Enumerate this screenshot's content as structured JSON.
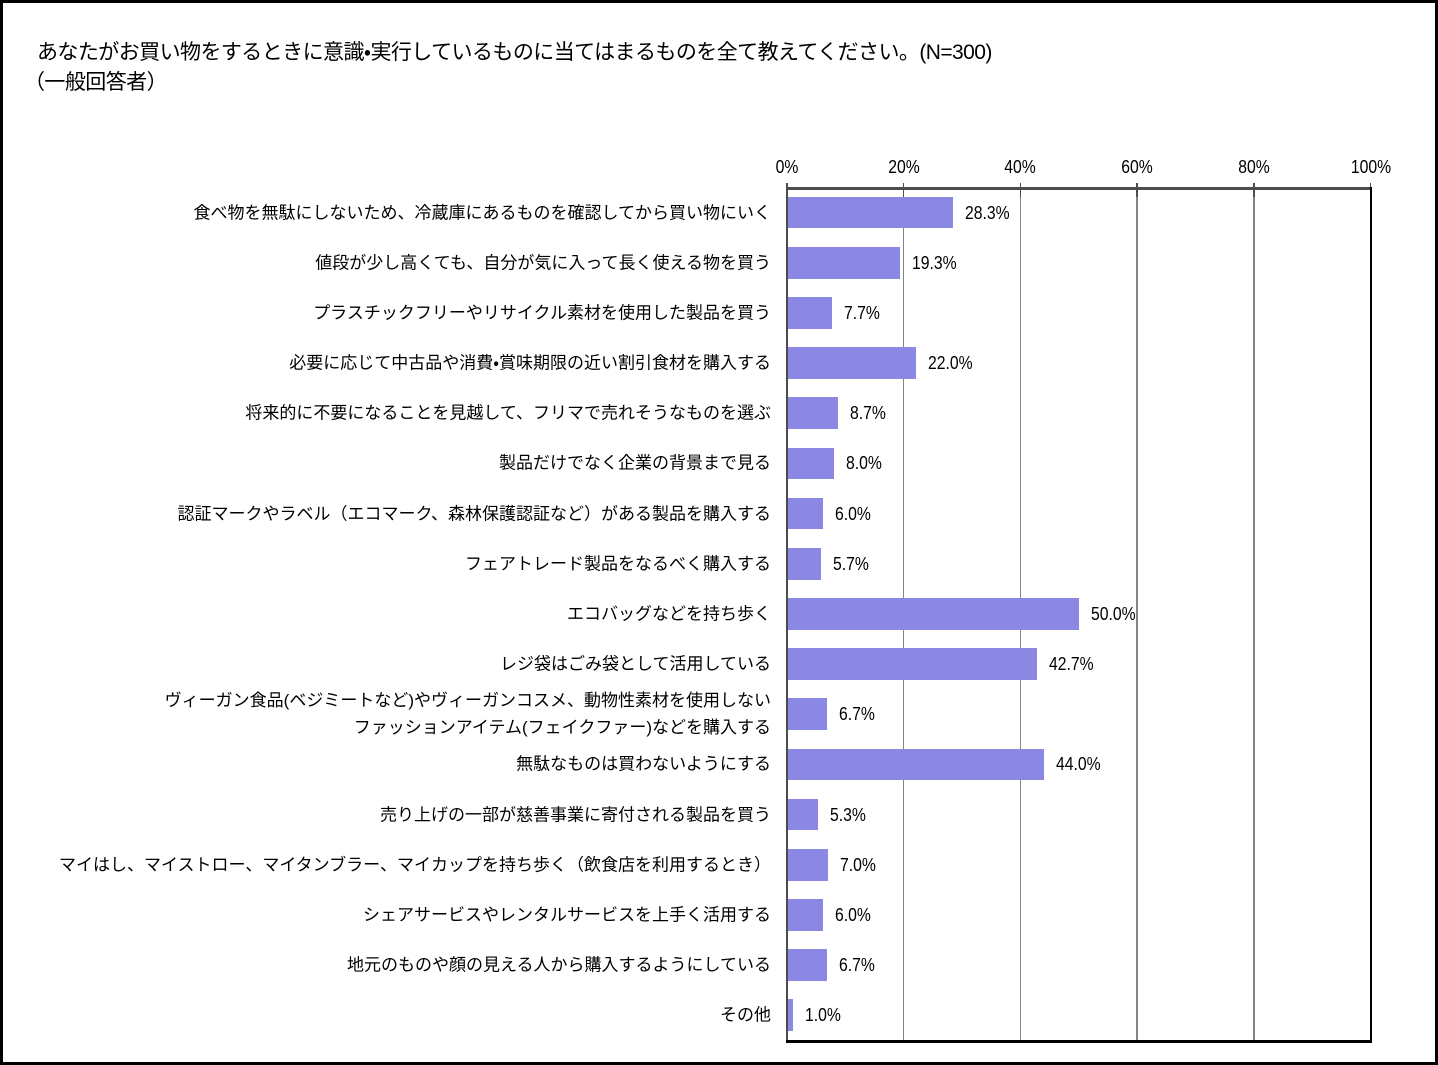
{
  "chart_data": {
    "type": "bar",
    "orientation": "horizontal",
    "title": "あなたがお買い物をするときに意識・実行しているものに当てはまるものを全て教えてください。(N=300)",
    "subtitle": "（一般回答者）",
    "categories": [
      "食べ物を無駄にしないため、冷蔵庫にあるものを確認してから買い物にいく",
      "値段が少し高くても、自分が気に入って長く使える物を買う",
      "プラスチックフリーやリサイクル素材を使用した製品を買う",
      "必要に応じて中古品や消費・賞味期限の近い割引食材を購入する",
      "将来的に不要になることを見越して、フリマで売れそうなものを選ぶ",
      "製品だけでなく企業の背景まで見る",
      "認証マークやラベル（エコマーク、森林保護認証など）がある製品を購入する",
      "フェアトレード製品をなるべく購入する",
      "エコバッグなどを持ち歩く",
      "レジ袋はごみ袋として活用している",
      "ヴィーガン食品(ベジミートなど)やヴィーガンコスメ、動物性素材を使用しない\nファッションアイテム(フェイクファー)などを購入する",
      "無駄なものは買わないようにする",
      "売り上げの一部が慈善事業に寄付される製品を買う",
      "マイはし、マイストロー、マイタンブラー、マイカップを持ち歩く（飲食店を利用するとき）",
      "シェアサービスやレンタルサービスを上手く活用する",
      "地元のものや顔の見える人から購入するようにしている",
      "その他"
    ],
    "values": [
      28.3,
      19.3,
      7.7,
      22.0,
      8.7,
      8.0,
      6.0,
      5.7,
      50.0,
      42.7,
      6.7,
      44.0,
      5.3,
      7.0,
      6.0,
      6.7,
      1.0
    ],
    "value_labels": [
      "28.3%",
      "19.3%",
      "7.7%",
      "22.0%",
      "8.7%",
      "8.0%",
      "6.0%",
      "5.7%",
      "50.0%",
      "42.7%",
      "6.7%",
      "44.0%",
      "5.3%",
      "7.0%",
      "6.0%",
      "6.7%",
      "1.0%"
    ],
    "x_ticks": [
      "0%",
      "20%",
      "40%",
      "60%",
      "80%",
      "100%"
    ],
    "xlim": [
      0,
      100
    ],
    "grid": true,
    "legend": false,
    "bar_color": "#8B88E4",
    "gridline_color": "#858585",
    "axis_border_color": "#4d4d4d",
    "shadow_border_color": "#000000"
  }
}
